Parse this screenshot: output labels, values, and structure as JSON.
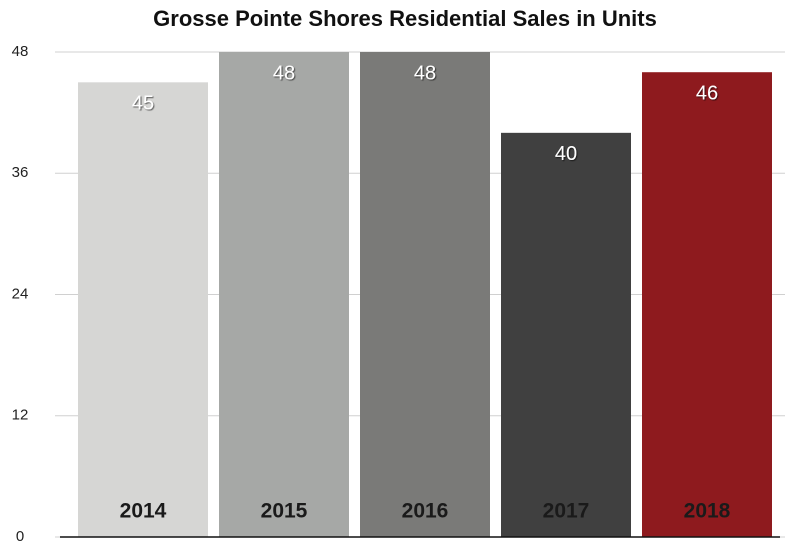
{
  "chart_data": {
    "type": "bar",
    "title": "Grosse Pointe Shores Residential Sales in Units",
    "categories": [
      "2014",
      "2015",
      "2016",
      "2017",
      "2018"
    ],
    "values": [
      45,
      48,
      48,
      40,
      46
    ],
    "colors": [
      "#d6d6d4",
      "#a6a8a6",
      "#7a7a78",
      "#404040",
      "#8e1a1e"
    ],
    "ylim": [
      0,
      48
    ],
    "yticks": [
      0,
      12,
      24,
      36,
      48
    ],
    "grid": true
  }
}
